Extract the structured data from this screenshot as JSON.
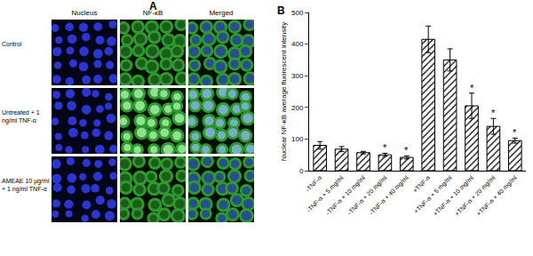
{
  "panel_a": {
    "label": "A",
    "columns": [
      "Nucleus",
      "NF-κB",
      "Merged"
    ],
    "rows": [
      "Control",
      "Untreated + 1 ng/ml TNF-α",
      "AMEAE 10 μg/ml + 1 ng/ml TNF-α"
    ]
  },
  "chart_data": {
    "type": "bar",
    "panel_label": "B",
    "y_label": "Nuclear NF-κB average fluorescent intensity",
    "categories": [
      "-TNF-α",
      "-TNF-α + 5 mg/ml",
      "-TNF-α + 10 mg/ml",
      "-TNF-α + 20 mg/ml",
      "-TNF-α + 40 mg/ml",
      "+TNF-α",
      "+TNF-α + 5 mg/ml",
      "+TNF-α + 10 mg/ml",
      "+TNF-α + 20 mg/ml",
      "+TNF-α + 40 mg/ml"
    ],
    "values": [
      80,
      68,
      57,
      50,
      42,
      415,
      350,
      205,
      140,
      95
    ],
    "error": [
      12,
      8,
      4,
      5,
      5,
      42,
      35,
      40,
      25,
      8
    ],
    "significance": [
      null,
      null,
      null,
      "*",
      "*",
      null,
      null,
      "*",
      "*",
      "*"
    ],
    "color": "#ffffff",
    "ylim": [
      0,
      500
    ],
    "yticks": [
      0,
      100,
      200,
      300,
      400,
      500
    ],
    "grid": false
  }
}
